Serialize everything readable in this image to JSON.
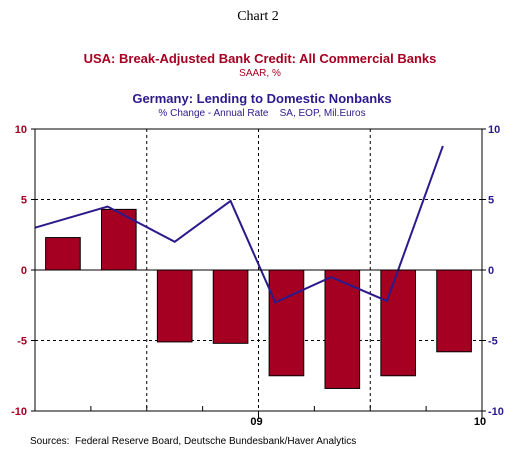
{
  "page_title": "Chart 2",
  "colors": {
    "bar": "#a50021",
    "line": "#2b1a8c",
    "axis": "#000000",
    "usa_title": "#a50021",
    "germany_title": "#2b1a8c"
  },
  "chart_data": {
    "type": "bar",
    "title": "USA: Break-Adjusted Bank Credit: All Commercial Banks",
    "subtitle": "SAAR, %",
    "secondary_title": "Germany: Lending to Domestic Nonbanks",
    "secondary_subtitle": "% Change - Annual Rate    SA, EOP, Mil.Euros",
    "left_axis": {
      "ylim": [
        -10,
        10
      ],
      "ticks": [
        "10",
        "5",
        "0",
        "-5",
        "-10"
      ],
      "tick_values": [
        10,
        5,
        0,
        -5,
        -10
      ]
    },
    "right_axis": {
      "ylim": [
        -10,
        10
      ],
      "ticks": [
        "10",
        "5",
        "0",
        "-5",
        "-10"
      ],
      "tick_values": [
        10,
        5,
        0,
        -5,
        -10
      ]
    },
    "x_axis": {
      "range": [
        0,
        8
      ],
      "ticks": [
        "09",
        "10"
      ],
      "tick_positions": [
        4,
        8
      ],
      "minor_tick_positions": [
        1,
        2,
        3,
        5,
        6,
        7
      ]
    },
    "grid": true,
    "series": [
      {
        "name": "USA: Break-Adjusted Bank Credit: All Commercial Banks",
        "type": "bar",
        "x": [
          0.5,
          1.5,
          2.5,
          3.5,
          4.5,
          5.5,
          6.5,
          7.5
        ],
        "values": [
          2.3,
          4.3,
          -5.1,
          -5.2,
          -7.5,
          -8.4,
          -7.5,
          -5.8
        ]
      },
      {
        "name": "Germany: Lending to Domestic Nonbanks",
        "type": "line",
        "x": [
          0,
          1.3,
          2.5,
          3.5,
          4.3,
          5.3,
          6.3,
          7.3
        ],
        "values": [
          3.0,
          4.5,
          2.0,
          4.9,
          -2.3,
          -0.5,
          -2.2,
          8.8
        ]
      }
    ],
    "source": "Sources:  Federal Reserve Board, Deutsche Bundesbank/Haver Analytics"
  }
}
